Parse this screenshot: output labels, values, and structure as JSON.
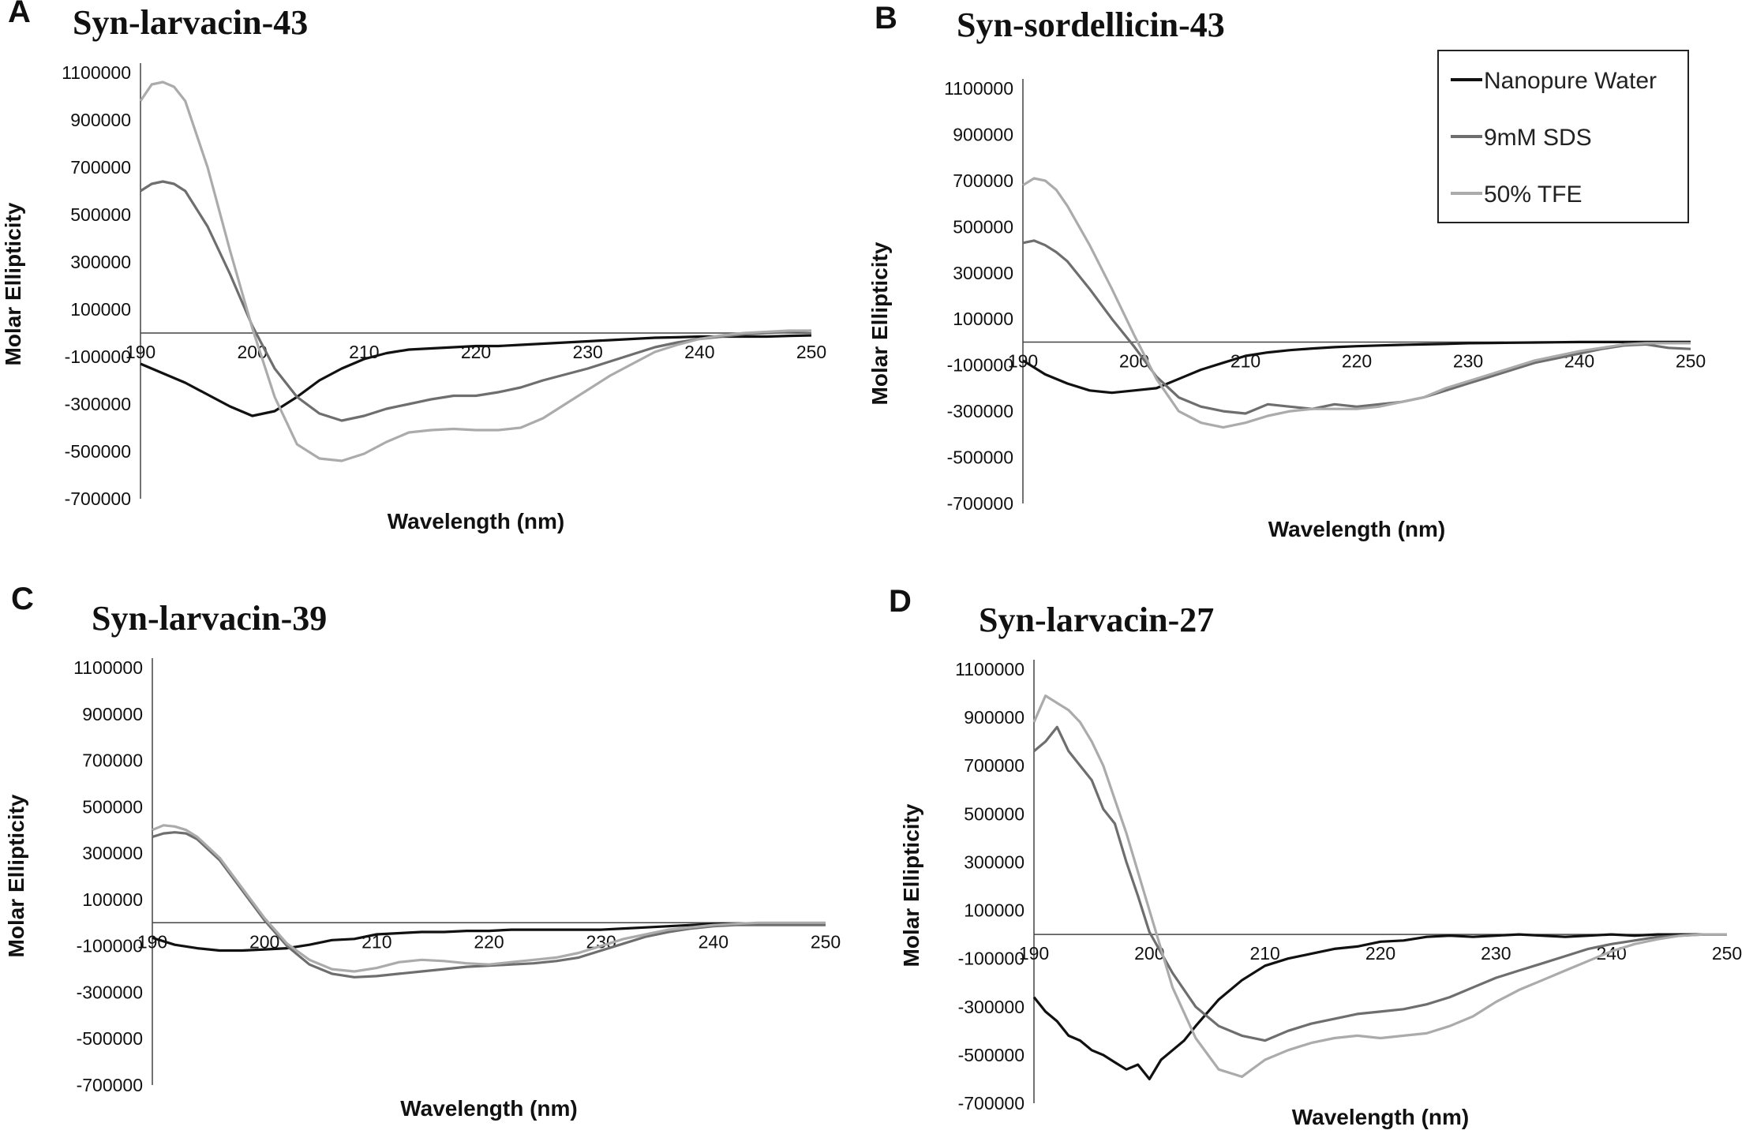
{
  "figure": {
    "panels": [
      {
        "letter": "A",
        "title": "Syn-larvacin-43"
      },
      {
        "letter": "B",
        "title": "Syn-sordellicin-43"
      },
      {
        "letter": "C",
        "title": "Syn-larvacin-39"
      },
      {
        "letter": "D",
        "title": "Syn-larvacin-27"
      }
    ],
    "legend": [
      "Nanopure Water",
      "9mM SDS",
      "50% TFE"
    ],
    "colors": {
      "water": "#111111",
      "sds": "#6e6e6e",
      "tfe": "#ababab"
    }
  },
  "chart_data": [
    {
      "panel": "A",
      "type": "line",
      "title": "Syn-larvacin-43",
      "xlabel": "Wavelength (nm)",
      "ylabel": "Molar Ellipticity",
      "xlim": [
        190,
        250
      ],
      "ylim": [
        -700000,
        1100000
      ],
      "xticks": [
        190,
        200,
        210,
        220,
        230,
        240,
        250
      ],
      "yticks": [
        1100000,
        900000,
        700000,
        500000,
        300000,
        100000,
        -100000,
        -300000,
        -500000,
        -700000
      ],
      "legend": false,
      "series": [
        {
          "name": "Nanopure Water",
          "x": [
            190,
            192,
            194,
            196,
            198,
            200,
            202,
            204,
            206,
            208,
            210,
            212,
            214,
            216,
            218,
            220,
            222,
            224,
            226,
            228,
            230,
            232,
            234,
            236,
            238,
            240,
            242,
            244,
            246,
            248,
            250
          ],
          "y": [
            -130000,
            -170000,
            -210000,
            -260000,
            -310000,
            -350000,
            -330000,
            -270000,
            -200000,
            -150000,
            -110000,
            -85000,
            -70000,
            -65000,
            -60000,
            -55000,
            -55000,
            -50000,
            -45000,
            -40000,
            -35000,
            -30000,
            -25000,
            -20000,
            -18000,
            -15000,
            -15000,
            -15000,
            -15000,
            -12000,
            -10000
          ]
        },
        {
          "name": "9mM SDS",
          "x": [
            190,
            191,
            192,
            193,
            194,
            196,
            198,
            200,
            202,
            204,
            206,
            208,
            210,
            212,
            214,
            216,
            218,
            220,
            222,
            224,
            226,
            228,
            230,
            232,
            234,
            236,
            238,
            240,
            242,
            244,
            246,
            248,
            250
          ],
          "y": [
            600000,
            630000,
            640000,
            630000,
            600000,
            450000,
            250000,
            30000,
            -150000,
            -270000,
            -340000,
            -370000,
            -350000,
            -320000,
            -300000,
            -280000,
            -265000,
            -265000,
            -250000,
            -230000,
            -200000,
            -175000,
            -150000,
            -120000,
            -90000,
            -60000,
            -40000,
            -25000,
            -15000,
            -5000,
            0,
            5000,
            10000
          ]
        },
        {
          "name": "50% TFE",
          "x": [
            190,
            191,
            192,
            193,
            194,
            196,
            198,
            200,
            202,
            204,
            206,
            208,
            210,
            212,
            214,
            216,
            218,
            220,
            222,
            224,
            226,
            228,
            230,
            232,
            234,
            236,
            238,
            240,
            242,
            244,
            246,
            248,
            250
          ],
          "y": [
            980000,
            1050000,
            1060000,
            1040000,
            980000,
            700000,
            350000,
            20000,
            -270000,
            -470000,
            -530000,
            -540000,
            -510000,
            -460000,
            -420000,
            -410000,
            -405000,
            -410000,
            -410000,
            -400000,
            -360000,
            -300000,
            -240000,
            -180000,
            -130000,
            -80000,
            -50000,
            -25000,
            -10000,
            0,
            5000,
            10000,
            10000
          ]
        }
      ]
    },
    {
      "panel": "B",
      "type": "line",
      "title": "Syn-sordellicin-43",
      "xlabel": "Wavelength (nm)",
      "ylabel": "Molar Ellipticity",
      "xlim": [
        190,
        250
      ],
      "ylim": [
        -700000,
        1100000
      ],
      "xticks": [
        190,
        200,
        210,
        220,
        230,
        240,
        250
      ],
      "yticks": [
        1100000,
        900000,
        700000,
        500000,
        300000,
        100000,
        -100000,
        -300000,
        -500000,
        -700000
      ],
      "legend": true,
      "series": [
        {
          "name": "Nanopure Water",
          "x": [
            190,
            192,
            194,
            196,
            198,
            200,
            202,
            204,
            206,
            208,
            210,
            212,
            214,
            216,
            218,
            220,
            222,
            224,
            226,
            228,
            230,
            232,
            234,
            236,
            238,
            240,
            242,
            244,
            246,
            248,
            250
          ],
          "y": [
            -80000,
            -140000,
            -180000,
            -210000,
            -220000,
            -210000,
            -200000,
            -160000,
            -120000,
            -90000,
            -60000,
            -45000,
            -35000,
            -28000,
            -22000,
            -18000,
            -15000,
            -12000,
            -10000,
            -8000,
            -5000,
            -4000,
            -3000,
            -2000,
            -1000,
            0,
            0,
            0,
            0,
            0,
            0
          ]
        },
        {
          "name": "9mM SDS",
          "x": [
            190,
            191,
            192,
            193,
            194,
            196,
            198,
            200,
            202,
            204,
            206,
            208,
            210,
            212,
            214,
            216,
            218,
            220,
            222,
            224,
            226,
            228,
            230,
            232,
            234,
            236,
            238,
            240,
            242,
            244,
            246,
            248,
            250
          ],
          "y": [
            430000,
            440000,
            420000,
            390000,
            350000,
            230000,
            100000,
            -20000,
            -150000,
            -240000,
            -280000,
            -300000,
            -310000,
            -270000,
            -280000,
            -290000,
            -270000,
            -280000,
            -270000,
            -260000,
            -240000,
            -210000,
            -180000,
            -150000,
            -120000,
            -90000,
            -70000,
            -50000,
            -30000,
            -15000,
            -10000,
            -25000,
            -30000
          ]
        },
        {
          "name": "50% TFE",
          "x": [
            190,
            191,
            192,
            193,
            194,
            196,
            198,
            200,
            202,
            204,
            206,
            208,
            210,
            212,
            214,
            216,
            218,
            220,
            222,
            224,
            226,
            228,
            230,
            232,
            234,
            236,
            238,
            240,
            242,
            244,
            246,
            248,
            250
          ],
          "y": [
            680000,
            710000,
            700000,
            660000,
            590000,
            420000,
            230000,
            30000,
            -160000,
            -300000,
            -350000,
            -370000,
            -350000,
            -320000,
            -300000,
            -290000,
            -290000,
            -290000,
            -280000,
            -260000,
            -240000,
            -200000,
            -170000,
            -140000,
            -110000,
            -80000,
            -60000,
            -40000,
            -25000,
            -10000,
            -5000,
            -5000,
            -5000
          ]
        }
      ]
    },
    {
      "panel": "C",
      "type": "line",
      "title": "Syn-larvacin-39",
      "xlabel": "Wavelength (nm)",
      "ylabel": "Molar Ellipticity",
      "xlim": [
        190,
        250
      ],
      "ylim": [
        -700000,
        1100000
      ],
      "xticks": [
        190,
        200,
        210,
        220,
        230,
        240,
        250
      ],
      "yticks": [
        1100000,
        900000,
        700000,
        500000,
        300000,
        100000,
        -100000,
        -300000,
        -500000,
        -700000
      ],
      "legend": false,
      "series": [
        {
          "name": "Nanopure Water",
          "x": [
            190,
            192,
            194,
            196,
            198,
            200,
            202,
            204,
            206,
            208,
            210,
            212,
            214,
            216,
            218,
            220,
            222,
            224,
            226,
            228,
            230,
            232,
            234,
            236,
            238,
            240,
            242,
            244,
            246,
            248,
            250
          ],
          "y": [
            -65000,
            -95000,
            -110000,
            -120000,
            -120000,
            -115000,
            -110000,
            -95000,
            -75000,
            -70000,
            -50000,
            -45000,
            -40000,
            -40000,
            -35000,
            -35000,
            -30000,
            -30000,
            -30000,
            -30000,
            -30000,
            -25000,
            -20000,
            -15000,
            -10000,
            -5000,
            -5000,
            -5000,
            -5000,
            -5000,
            -5000
          ]
        },
        {
          "name": "9mM SDS",
          "x": [
            190,
            191,
            192,
            193,
            194,
            196,
            198,
            200,
            202,
            204,
            206,
            208,
            210,
            212,
            214,
            216,
            218,
            220,
            222,
            224,
            226,
            228,
            230,
            232,
            234,
            236,
            238,
            240,
            242,
            244,
            246,
            248,
            250
          ],
          "y": [
            370000,
            385000,
            390000,
            385000,
            360000,
            270000,
            140000,
            10000,
            -100000,
            -180000,
            -220000,
            -235000,
            -230000,
            -220000,
            -210000,
            -200000,
            -190000,
            -185000,
            -180000,
            -175000,
            -165000,
            -150000,
            -120000,
            -90000,
            -60000,
            -40000,
            -25000,
            -15000,
            -10000,
            -10000,
            -10000,
            -10000,
            -10000
          ]
        },
        {
          "name": "50% TFE",
          "x": [
            190,
            191,
            192,
            193,
            194,
            196,
            198,
            200,
            202,
            204,
            206,
            208,
            210,
            212,
            214,
            216,
            218,
            220,
            222,
            224,
            226,
            228,
            230,
            232,
            234,
            236,
            238,
            240,
            242,
            244,
            246,
            248,
            250
          ],
          "y": [
            400000,
            420000,
            415000,
            400000,
            370000,
            280000,
            150000,
            20000,
            -90000,
            -160000,
            -200000,
            -210000,
            -195000,
            -170000,
            -160000,
            -165000,
            -175000,
            -180000,
            -170000,
            -160000,
            -150000,
            -130000,
            -100000,
            -70000,
            -50000,
            -30000,
            -20000,
            -10000,
            -5000,
            0,
            0,
            0,
            0
          ]
        }
      ]
    },
    {
      "panel": "D",
      "type": "line",
      "title": "Syn-larvacin-27",
      "xlabel": "Wavelength (nm)",
      "ylabel": "Molar Ellipticity",
      "xlim": [
        190,
        250
      ],
      "ylim": [
        -700000,
        1100000
      ],
      "xticks": [
        190,
        200,
        210,
        220,
        230,
        240,
        250
      ],
      "yticks": [
        1100000,
        900000,
        700000,
        500000,
        300000,
        100000,
        -100000,
        -300000,
        -500000,
        -700000
      ],
      "legend": false,
      "series": [
        {
          "name": "Nanopure Water",
          "x": [
            190,
            191,
            192,
            193,
            194,
            195,
            196,
            197,
            198,
            199,
            200,
            201,
            202,
            203,
            204,
            206,
            208,
            210,
            212,
            214,
            216,
            218,
            220,
            222,
            224,
            226,
            228,
            230,
            232,
            234,
            236,
            238,
            240,
            242,
            244,
            246,
            248,
            250
          ],
          "y": [
            -260000,
            -320000,
            -360000,
            -420000,
            -440000,
            -480000,
            -500000,
            -530000,
            -560000,
            -540000,
            -600000,
            -520000,
            -480000,
            -440000,
            -380000,
            -270000,
            -190000,
            -130000,
            -100000,
            -80000,
            -60000,
            -50000,
            -30000,
            -25000,
            -10000,
            -5000,
            -10000,
            -5000,
            0,
            -5000,
            -10000,
            -5000,
            0,
            -5000,
            0,
            0,
            0,
            0
          ]
        },
        {
          "name": "9mM SDS",
          "x": [
            190,
            191,
            192,
            193,
            194,
            195,
            196,
            197,
            198,
            199,
            200,
            202,
            204,
            206,
            208,
            210,
            212,
            214,
            216,
            218,
            220,
            222,
            224,
            226,
            228,
            230,
            232,
            234,
            236,
            238,
            240,
            242,
            244,
            246,
            248,
            250
          ],
          "y": [
            760000,
            800000,
            860000,
            760000,
            700000,
            640000,
            520000,
            460000,
            300000,
            160000,
            10000,
            -160000,
            -300000,
            -380000,
            -420000,
            -440000,
            -400000,
            -370000,
            -350000,
            -330000,
            -320000,
            -310000,
            -290000,
            -260000,
            -220000,
            -180000,
            -150000,
            -120000,
            -90000,
            -60000,
            -40000,
            -25000,
            -10000,
            -5000,
            0,
            0
          ]
        },
        {
          "name": "50% TFE",
          "x": [
            190,
            191,
            192,
            193,
            194,
            195,
            196,
            197,
            198,
            199,
            200,
            202,
            204,
            206,
            208,
            210,
            212,
            214,
            216,
            218,
            220,
            222,
            224,
            226,
            228,
            230,
            232,
            234,
            236,
            238,
            240,
            242,
            244,
            246,
            248,
            250
          ],
          "y": [
            880000,
            990000,
            960000,
            930000,
            880000,
            800000,
            700000,
            560000,
            420000,
            260000,
            100000,
            -220000,
            -430000,
            -560000,
            -590000,
            -520000,
            -480000,
            -450000,
            -430000,
            -420000,
            -430000,
            -420000,
            -410000,
            -380000,
            -340000,
            -280000,
            -230000,
            -190000,
            -150000,
            -110000,
            -70000,
            -40000,
            -20000,
            -5000,
            0,
            0
          ]
        }
      ]
    }
  ]
}
